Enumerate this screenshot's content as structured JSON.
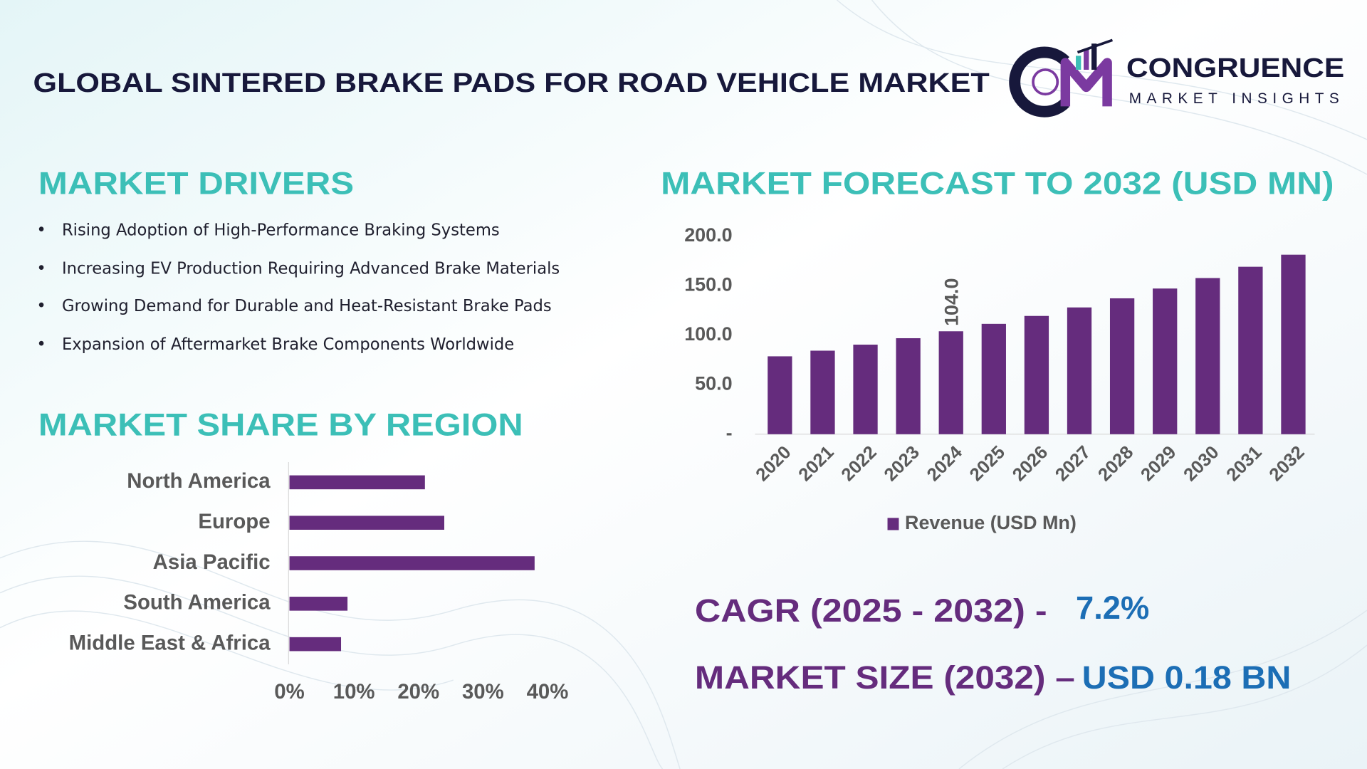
{
  "header": {
    "title": "GLOBAL SINTERED BRAKE PADS FOR ROAD VEHICLE MARKET",
    "logo_name": "CONGRUENCE",
    "logo_tagline": "MARKET INSIGHTS"
  },
  "drivers": {
    "title": "MARKET DRIVERS",
    "items": [
      "Rising Adoption of High-Performance Braking Systems",
      "Increasing EV Production Requiring Advanced Brake Materials",
      "Growing Demand for Durable and Heat-Resistant Brake Pads",
      "Expansion of Aftermarket Brake Components Worldwide"
    ]
  },
  "highlights": {
    "cagr_label": "CAGR (2025 - 2032) -",
    "cagr_value": "7.2%",
    "size_label": "MARKET SIZE (2032) –",
    "size_value": "USD 0.18 BN"
  },
  "chart_data": [
    {
      "type": "bar",
      "orientation": "vertical",
      "title": "MARKET FORECAST TO 2032 (USD MN)",
      "categories": [
        "2020",
        "2021",
        "2022",
        "2023",
        "2024",
        "2025",
        "2026",
        "2027",
        "2028",
        "2029",
        "2030",
        "2031",
        "2032"
      ],
      "series": [
        {
          "name": "Revenue (USD Mn)",
          "color": "#652c7d",
          "values": [
            78.7,
            84.4,
            90.5,
            97.0,
            104.0,
            111.5,
            119.5,
            128.1,
            137.3,
            147.2,
            157.8,
            169.2,
            181.4
          ],
          "value_labels": [
            null,
            null,
            null,
            null,
            "104.0",
            null,
            null,
            null,
            null,
            null,
            null,
            null,
            null
          ]
        }
      ],
      "ylim": [
        0,
        200
      ],
      "yticks": [
        {
          "value": 0,
          "label": "-"
        },
        {
          "value": 50,
          "label": "50.0"
        },
        {
          "value": 100,
          "label": "100.0"
        },
        {
          "value": 150,
          "label": "150.0"
        },
        {
          "value": 200,
          "label": "200.0"
        }
      ],
      "grid": false,
      "legend": "bottom"
    },
    {
      "type": "bar",
      "orientation": "horizontal",
      "title": "MARKET SHARE BY REGION",
      "categories": [
        "North America",
        "Europe",
        "Asia Pacific",
        "South America",
        "Middle East & Africa"
      ],
      "values": [
        21,
        24,
        38,
        9,
        8
      ],
      "color": "#652c7d",
      "xlim": [
        0,
        40
      ],
      "xticks": [
        {
          "value": 0,
          "label": "0%"
        },
        {
          "value": 10,
          "label": "10%"
        },
        {
          "value": 20,
          "label": "20%"
        },
        {
          "value": 30,
          "label": "30%"
        },
        {
          "value": 40,
          "label": "40%"
        }
      ],
      "grid": false
    }
  ]
}
